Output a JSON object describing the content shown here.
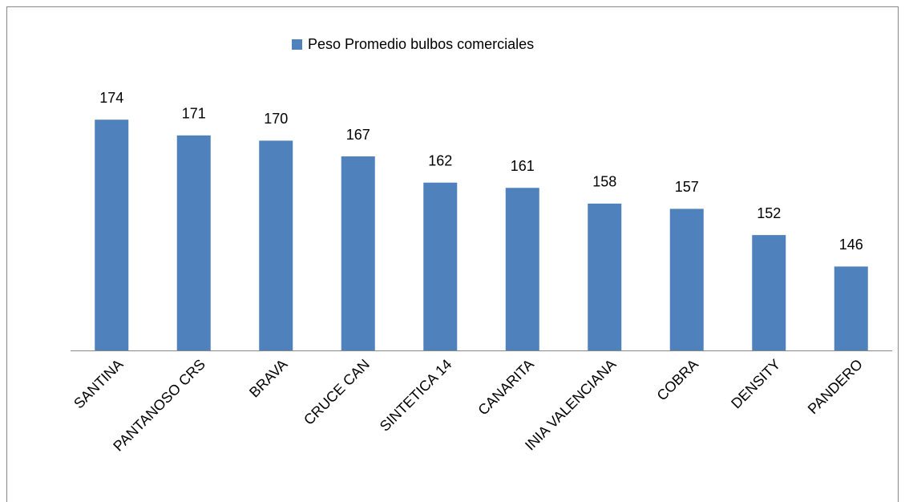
{
  "chart_data": {
    "type": "bar",
    "legend": "Peso Promedio bulbos comerciales",
    "categories": [
      "SANTINA",
      "PANTANOSO CRS",
      "BRAVA",
      "CRUCE CAN",
      "SINTETICA 14",
      "CANARITA",
      "INIA VALENCIANA",
      "COBRA",
      "DENSITY",
      "PANDERO"
    ],
    "values": [
      174,
      171,
      170,
      167,
      162,
      161,
      158,
      157,
      152,
      146
    ],
    "color": "#4f81bd",
    "ylim": [
      130,
      180
    ]
  }
}
